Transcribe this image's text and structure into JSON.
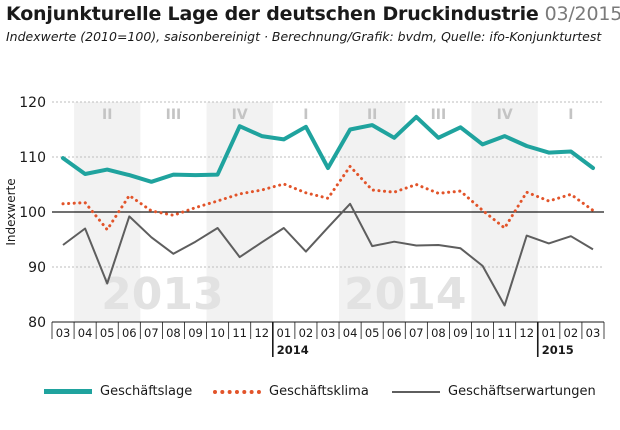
{
  "header": {
    "title": "Konjunkturelle Lage der deutschen Druckindustrie",
    "date": "03/2015",
    "subtitle": "Indexwerte (2010=100), saisonbereinigt · Berechnung/Grafik: bvdm, Quelle: ifo-Konjunkturtest"
  },
  "colors": {
    "lage": "#1fa39e",
    "klima": "#e2542a",
    "erw": "#5e5e5e",
    "quarter_band": "#f2f2f2"
  },
  "chart_data": {
    "type": "line",
    "x": [
      "03",
      "04",
      "05",
      "06",
      "07",
      "08",
      "09",
      "10",
      "11",
      "12",
      "01",
      "02",
      "03",
      "04",
      "05",
      "06",
      "07",
      "08",
      "09",
      "10",
      "11",
      "12",
      "01",
      "02",
      "03"
    ],
    "year_labels": [
      {
        "label": "2014",
        "index": 10
      },
      {
        "label": "2015",
        "index": 22
      }
    ],
    "watermarks": [
      {
        "label": "2013",
        "center": 4.5
      },
      {
        "label": "2014",
        "center": 15.5
      }
    ],
    "quarters": [
      {
        "label": "II",
        "start": 1,
        "end": 3,
        "shaded": true
      },
      {
        "label": "III",
        "start": 4,
        "end": 6,
        "shaded": false
      },
      {
        "label": "IV",
        "start": 7,
        "end": 9,
        "shaded": true
      },
      {
        "label": "I",
        "start": 10,
        "end": 12,
        "shaded": false
      },
      {
        "label": "II",
        "start": 13,
        "end": 15,
        "shaded": true
      },
      {
        "label": "III",
        "start": 16,
        "end": 18,
        "shaded": false
      },
      {
        "label": "IV",
        "start": 19,
        "end": 21,
        "shaded": true
      },
      {
        "label": "I",
        "start": 22,
        "end": 24,
        "shaded": false
      }
    ],
    "ylabel": "Indexwerte",
    "ylim": [
      80,
      120
    ],
    "yticks": [
      80,
      90,
      100,
      110,
      120
    ],
    "series": [
      {
        "name": "Geschäftslage",
        "key": "lage",
        "values": [
          109.8,
          106.9,
          107.7,
          106.7,
          105.5,
          106.8,
          106.7,
          106.8,
          115.6,
          113.8,
          113.2,
          115.5,
          108.0,
          115.0,
          115.8,
          113.5,
          117.3,
          113.5,
          115.4,
          112.3,
          113.8,
          112.0,
          110.8,
          111.0,
          108.0
        ]
      },
      {
        "name": "Geschäftsklima",
        "key": "klima",
        "values": [
          101.5,
          101.7,
          96.8,
          103.0,
          100.2,
          99.4,
          100.8,
          102.0,
          103.3,
          104.0,
          105.1,
          103.5,
          102.5,
          108.3,
          104.0,
          103.6,
          105.0,
          103.4,
          103.8,
          100.3,
          97.1,
          103.6,
          102.0,
          103.2,
          100.3
        ]
      },
      {
        "name": "Geschäftserwartungen",
        "key": "erw",
        "values": [
          94.0,
          97.0,
          87.0,
          99.2,
          95.4,
          92.4,
          94.6,
          97.1,
          91.8,
          94.5,
          97.1,
          92.8,
          97.2,
          101.5,
          93.8,
          94.6,
          93.9,
          94.0,
          93.4,
          90.2,
          83.0,
          95.7,
          94.3,
          95.6,
          93.2
        ]
      }
    ]
  }
}
